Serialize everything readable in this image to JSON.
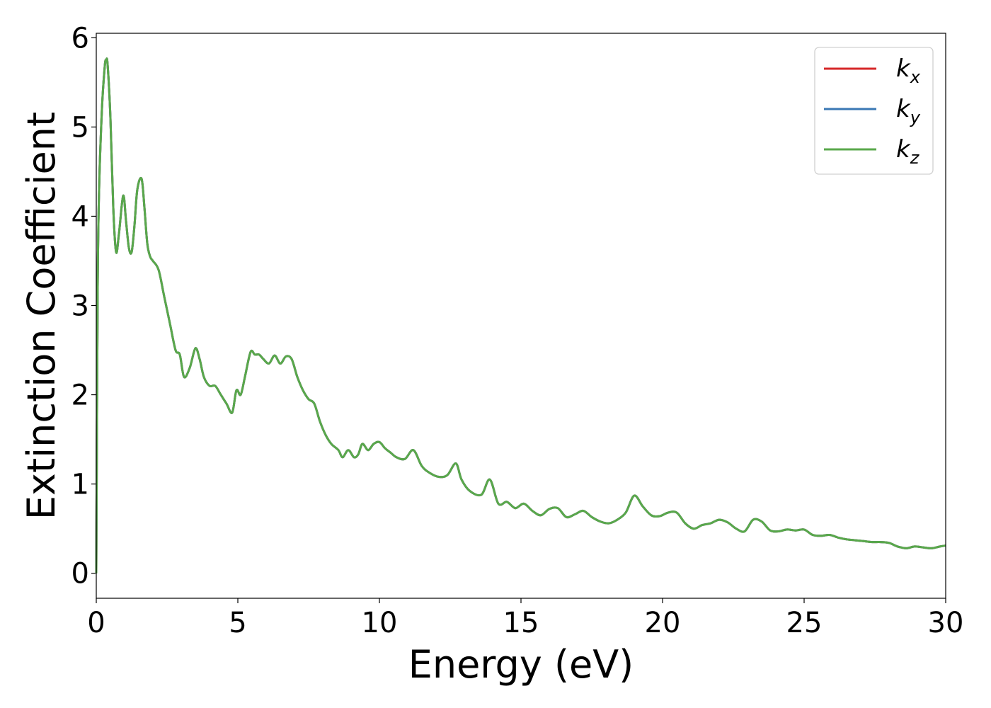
{
  "chart_data": {
    "type": "line",
    "title": "",
    "xlabel": "Energy (eV)",
    "ylabel": "Extinction Coefficient",
    "xlim": [
      0,
      30
    ],
    "ylim": [
      -0.28,
      6.05
    ],
    "xticks": [
      0,
      5,
      10,
      15,
      20,
      25,
      30
    ],
    "yticks": [
      0,
      1,
      2,
      3,
      4,
      5,
      6
    ],
    "grid": false,
    "legend_position": "top-right",
    "series": [
      {
        "name": "k",
        "subscript": "x",
        "color": "#d62728",
        "x": [
          0.0,
          0.05,
          0.1,
          0.2,
          0.3,
          0.35,
          0.4,
          0.5,
          0.6,
          0.7,
          0.8,
          0.95,
          1.05,
          1.15,
          1.25,
          1.35,
          1.45,
          1.6,
          1.7,
          1.8,
          1.9,
          2.0,
          2.2,
          2.4,
          2.6,
          2.8,
          2.95,
          3.1,
          3.3,
          3.5,
          3.65,
          3.8,
          4.0,
          4.2,
          4.4,
          4.6,
          4.8,
          4.95,
          5.1,
          5.25,
          5.45,
          5.6,
          5.75,
          5.9,
          6.1,
          6.3,
          6.5,
          6.7,
          6.9,
          7.1,
          7.3,
          7.5,
          7.7,
          7.9,
          8.1,
          8.3,
          8.55,
          8.7,
          8.9,
          9.1,
          9.25,
          9.4,
          9.6,
          9.8,
          10.0,
          10.2,
          10.4,
          10.6,
          10.9,
          11.2,
          11.5,
          11.8,
          12.1,
          12.4,
          12.7,
          12.9,
          13.2,
          13.6,
          13.9,
          14.2,
          14.5,
          14.8,
          15.1,
          15.4,
          15.7,
          16.0,
          16.3,
          16.6,
          16.9,
          17.2,
          17.5,
          17.8,
          18.1,
          18.4,
          18.7,
          19.0,
          19.3,
          19.6,
          19.9,
          20.2,
          20.5,
          20.8,
          21.1,
          21.4,
          21.7,
          22.0,
          22.3,
          22.6,
          22.9,
          23.2,
          23.5,
          23.8,
          24.1,
          24.4,
          24.7,
          25.0,
          25.3,
          25.6,
          25.9,
          26.2,
          26.5,
          26.8,
          27.1,
          27.4,
          27.7,
          28.0,
          28.3,
          28.6,
          28.9,
          29.2,
          29.5,
          29.8,
          30.0
        ],
        "y": [
          0.0,
          3.2,
          4.3,
          5.2,
          5.68,
          5.75,
          5.7,
          5.1,
          4.1,
          3.6,
          3.8,
          4.23,
          3.95,
          3.65,
          3.6,
          3.9,
          4.3,
          4.42,
          4.1,
          3.7,
          3.55,
          3.5,
          3.4,
          3.1,
          2.8,
          2.5,
          2.45,
          2.2,
          2.3,
          2.52,
          2.4,
          2.2,
          2.1,
          2.1,
          2.0,
          1.9,
          1.8,
          2.05,
          2.0,
          2.2,
          2.48,
          2.45,
          2.45,
          2.4,
          2.35,
          2.44,
          2.35,
          2.43,
          2.4,
          2.2,
          2.05,
          1.95,
          1.9,
          1.7,
          1.55,
          1.45,
          1.38,
          1.3,
          1.38,
          1.3,
          1.33,
          1.45,
          1.38,
          1.45,
          1.47,
          1.4,
          1.35,
          1.3,
          1.28,
          1.38,
          1.2,
          1.12,
          1.08,
          1.1,
          1.23,
          1.05,
          0.92,
          0.88,
          1.05,
          0.78,
          0.8,
          0.73,
          0.78,
          0.7,
          0.65,
          0.72,
          0.73,
          0.63,
          0.66,
          0.7,
          0.63,
          0.58,
          0.56,
          0.6,
          0.68,
          0.87,
          0.75,
          0.65,
          0.64,
          0.68,
          0.68,
          0.56,
          0.5,
          0.54,
          0.56,
          0.6,
          0.57,
          0.5,
          0.47,
          0.6,
          0.58,
          0.48,
          0.47,
          0.49,
          0.48,
          0.49,
          0.43,
          0.42,
          0.43,
          0.4,
          0.38,
          0.37,
          0.36,
          0.35,
          0.35,
          0.34,
          0.3,
          0.28,
          0.3,
          0.29,
          0.28,
          0.3,
          0.31
        ]
      },
      {
        "name": "k",
        "subscript": "y",
        "color": "#3a78b4",
        "x": [
          0.0,
          0.05,
          0.1,
          0.2,
          0.3,
          0.35,
          0.4,
          0.5,
          0.6,
          0.7,
          0.8,
          0.95,
          1.05,
          1.15,
          1.25,
          1.35,
          1.45,
          1.6,
          1.7,
          1.8,
          1.9,
          2.0,
          2.2,
          2.4,
          2.6,
          2.8,
          2.95,
          3.1,
          3.3,
          3.5,
          3.65,
          3.8,
          4.0,
          4.2,
          4.4,
          4.6,
          4.8,
          4.95,
          5.1,
          5.25,
          5.45,
          5.6,
          5.75,
          5.9,
          6.1,
          6.3,
          6.5,
          6.7,
          6.9,
          7.1,
          7.3,
          7.5,
          7.7,
          7.9,
          8.1,
          8.3,
          8.55,
          8.7,
          8.9,
          9.1,
          9.25,
          9.4,
          9.6,
          9.8,
          10.0,
          10.2,
          10.4,
          10.6,
          10.9,
          11.2,
          11.5,
          11.8,
          12.1,
          12.4,
          12.7,
          12.9,
          13.2,
          13.6,
          13.9,
          14.2,
          14.5,
          14.8,
          15.1,
          15.4,
          15.7,
          16.0,
          16.3,
          16.6,
          16.9,
          17.2,
          17.5,
          17.8,
          18.1,
          18.4,
          18.7,
          19.0,
          19.3,
          19.6,
          19.9,
          20.2,
          20.5,
          20.8,
          21.1,
          21.4,
          21.7,
          22.0,
          22.3,
          22.6,
          22.9,
          23.2,
          23.5,
          23.8,
          24.1,
          24.4,
          24.7,
          25.0,
          25.3,
          25.6,
          25.9,
          26.2,
          26.5,
          26.8,
          27.1,
          27.4,
          27.7,
          28.0,
          28.3,
          28.6,
          28.9,
          29.2,
          29.5,
          29.8,
          30.0
        ],
        "y": [
          0.0,
          3.2,
          4.3,
          5.2,
          5.68,
          5.75,
          5.7,
          5.1,
          4.1,
          3.6,
          3.8,
          4.23,
          3.95,
          3.65,
          3.6,
          3.9,
          4.3,
          4.42,
          4.1,
          3.7,
          3.55,
          3.5,
          3.4,
          3.1,
          2.8,
          2.5,
          2.45,
          2.2,
          2.3,
          2.52,
          2.4,
          2.2,
          2.1,
          2.1,
          2.0,
          1.9,
          1.8,
          2.05,
          2.0,
          2.2,
          2.48,
          2.45,
          2.45,
          2.4,
          2.35,
          2.44,
          2.35,
          2.43,
          2.4,
          2.2,
          2.05,
          1.95,
          1.9,
          1.7,
          1.55,
          1.45,
          1.38,
          1.3,
          1.38,
          1.3,
          1.33,
          1.45,
          1.38,
          1.45,
          1.47,
          1.4,
          1.35,
          1.3,
          1.28,
          1.38,
          1.2,
          1.12,
          1.08,
          1.1,
          1.23,
          1.05,
          0.92,
          0.88,
          1.05,
          0.78,
          0.8,
          0.73,
          0.78,
          0.7,
          0.65,
          0.72,
          0.73,
          0.63,
          0.66,
          0.7,
          0.63,
          0.58,
          0.56,
          0.6,
          0.68,
          0.87,
          0.75,
          0.65,
          0.64,
          0.68,
          0.68,
          0.56,
          0.5,
          0.54,
          0.56,
          0.6,
          0.57,
          0.5,
          0.47,
          0.6,
          0.58,
          0.48,
          0.47,
          0.49,
          0.48,
          0.49,
          0.43,
          0.42,
          0.43,
          0.4,
          0.38,
          0.37,
          0.36,
          0.35,
          0.35,
          0.34,
          0.3,
          0.28,
          0.3,
          0.29,
          0.28,
          0.3,
          0.31
        ]
      },
      {
        "name": "k",
        "subscript": "z",
        "color": "#59a84b",
        "x": [
          0.0,
          0.05,
          0.1,
          0.2,
          0.3,
          0.35,
          0.4,
          0.5,
          0.6,
          0.7,
          0.8,
          0.95,
          1.05,
          1.15,
          1.25,
          1.35,
          1.45,
          1.6,
          1.7,
          1.8,
          1.9,
          2.0,
          2.2,
          2.4,
          2.6,
          2.8,
          2.95,
          3.1,
          3.3,
          3.5,
          3.65,
          3.8,
          4.0,
          4.2,
          4.4,
          4.6,
          4.8,
          4.95,
          5.1,
          5.25,
          5.45,
          5.6,
          5.75,
          5.9,
          6.1,
          6.3,
          6.5,
          6.7,
          6.9,
          7.1,
          7.3,
          7.5,
          7.7,
          7.9,
          8.1,
          8.3,
          8.55,
          8.7,
          8.9,
          9.1,
          9.25,
          9.4,
          9.6,
          9.8,
          10.0,
          10.2,
          10.4,
          10.6,
          10.9,
          11.2,
          11.5,
          11.8,
          12.1,
          12.4,
          12.7,
          12.9,
          13.2,
          13.6,
          13.9,
          14.2,
          14.5,
          14.8,
          15.1,
          15.4,
          15.7,
          16.0,
          16.3,
          16.6,
          16.9,
          17.2,
          17.5,
          17.8,
          18.1,
          18.4,
          18.7,
          19.0,
          19.3,
          19.6,
          19.9,
          20.2,
          20.5,
          20.8,
          21.1,
          21.4,
          21.7,
          22.0,
          22.3,
          22.6,
          22.9,
          23.2,
          23.5,
          23.8,
          24.1,
          24.4,
          24.7,
          25.0,
          25.3,
          25.6,
          25.9,
          26.2,
          26.5,
          26.8,
          27.1,
          27.4,
          27.7,
          28.0,
          28.3,
          28.6,
          28.9,
          29.2,
          29.5,
          29.8,
          30.0
        ],
        "y": [
          0.0,
          3.2,
          4.3,
          5.2,
          5.68,
          5.75,
          5.7,
          5.1,
          4.1,
          3.6,
          3.8,
          4.23,
          3.95,
          3.65,
          3.6,
          3.9,
          4.3,
          4.42,
          4.1,
          3.7,
          3.55,
          3.5,
          3.4,
          3.1,
          2.8,
          2.5,
          2.45,
          2.2,
          2.3,
          2.52,
          2.4,
          2.2,
          2.1,
          2.1,
          2.0,
          1.9,
          1.8,
          2.05,
          2.0,
          2.2,
          2.48,
          2.45,
          2.45,
          2.4,
          2.35,
          2.44,
          2.35,
          2.43,
          2.4,
          2.2,
          2.05,
          1.95,
          1.9,
          1.7,
          1.55,
          1.45,
          1.38,
          1.3,
          1.38,
          1.3,
          1.33,
          1.45,
          1.38,
          1.45,
          1.47,
          1.4,
          1.35,
          1.3,
          1.28,
          1.38,
          1.2,
          1.12,
          1.08,
          1.1,
          1.23,
          1.05,
          0.92,
          0.88,
          1.05,
          0.78,
          0.8,
          0.73,
          0.78,
          0.7,
          0.65,
          0.72,
          0.73,
          0.63,
          0.66,
          0.7,
          0.63,
          0.58,
          0.56,
          0.6,
          0.68,
          0.87,
          0.75,
          0.65,
          0.64,
          0.68,
          0.68,
          0.56,
          0.5,
          0.54,
          0.56,
          0.6,
          0.57,
          0.5,
          0.47,
          0.6,
          0.58,
          0.48,
          0.47,
          0.49,
          0.48,
          0.49,
          0.43,
          0.42,
          0.43,
          0.4,
          0.38,
          0.37,
          0.36,
          0.35,
          0.35,
          0.34,
          0.3,
          0.28,
          0.3,
          0.29,
          0.28,
          0.3,
          0.31
        ]
      }
    ]
  }
}
